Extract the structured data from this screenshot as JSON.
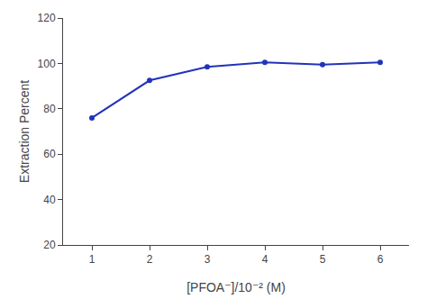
{
  "chart_data": {
    "type": "line",
    "x": [
      1,
      2,
      3,
      4,
      5,
      6
    ],
    "values": [
      76,
      92.5,
      98.5,
      100.5,
      99.5,
      100.5
    ],
    "xlabel": "[PFOA⁻]/10⁻² (M)",
    "ylabel": "Extraction Percent",
    "xlim": [
      0.5,
      6.5
    ],
    "ylim": [
      20,
      120
    ],
    "xticks": [
      1,
      2,
      3,
      4,
      5,
      6
    ],
    "yticks": [
      20,
      40,
      60,
      80,
      100,
      120
    ],
    "color": "#2233BB",
    "marker": "circle",
    "grid": false
  }
}
